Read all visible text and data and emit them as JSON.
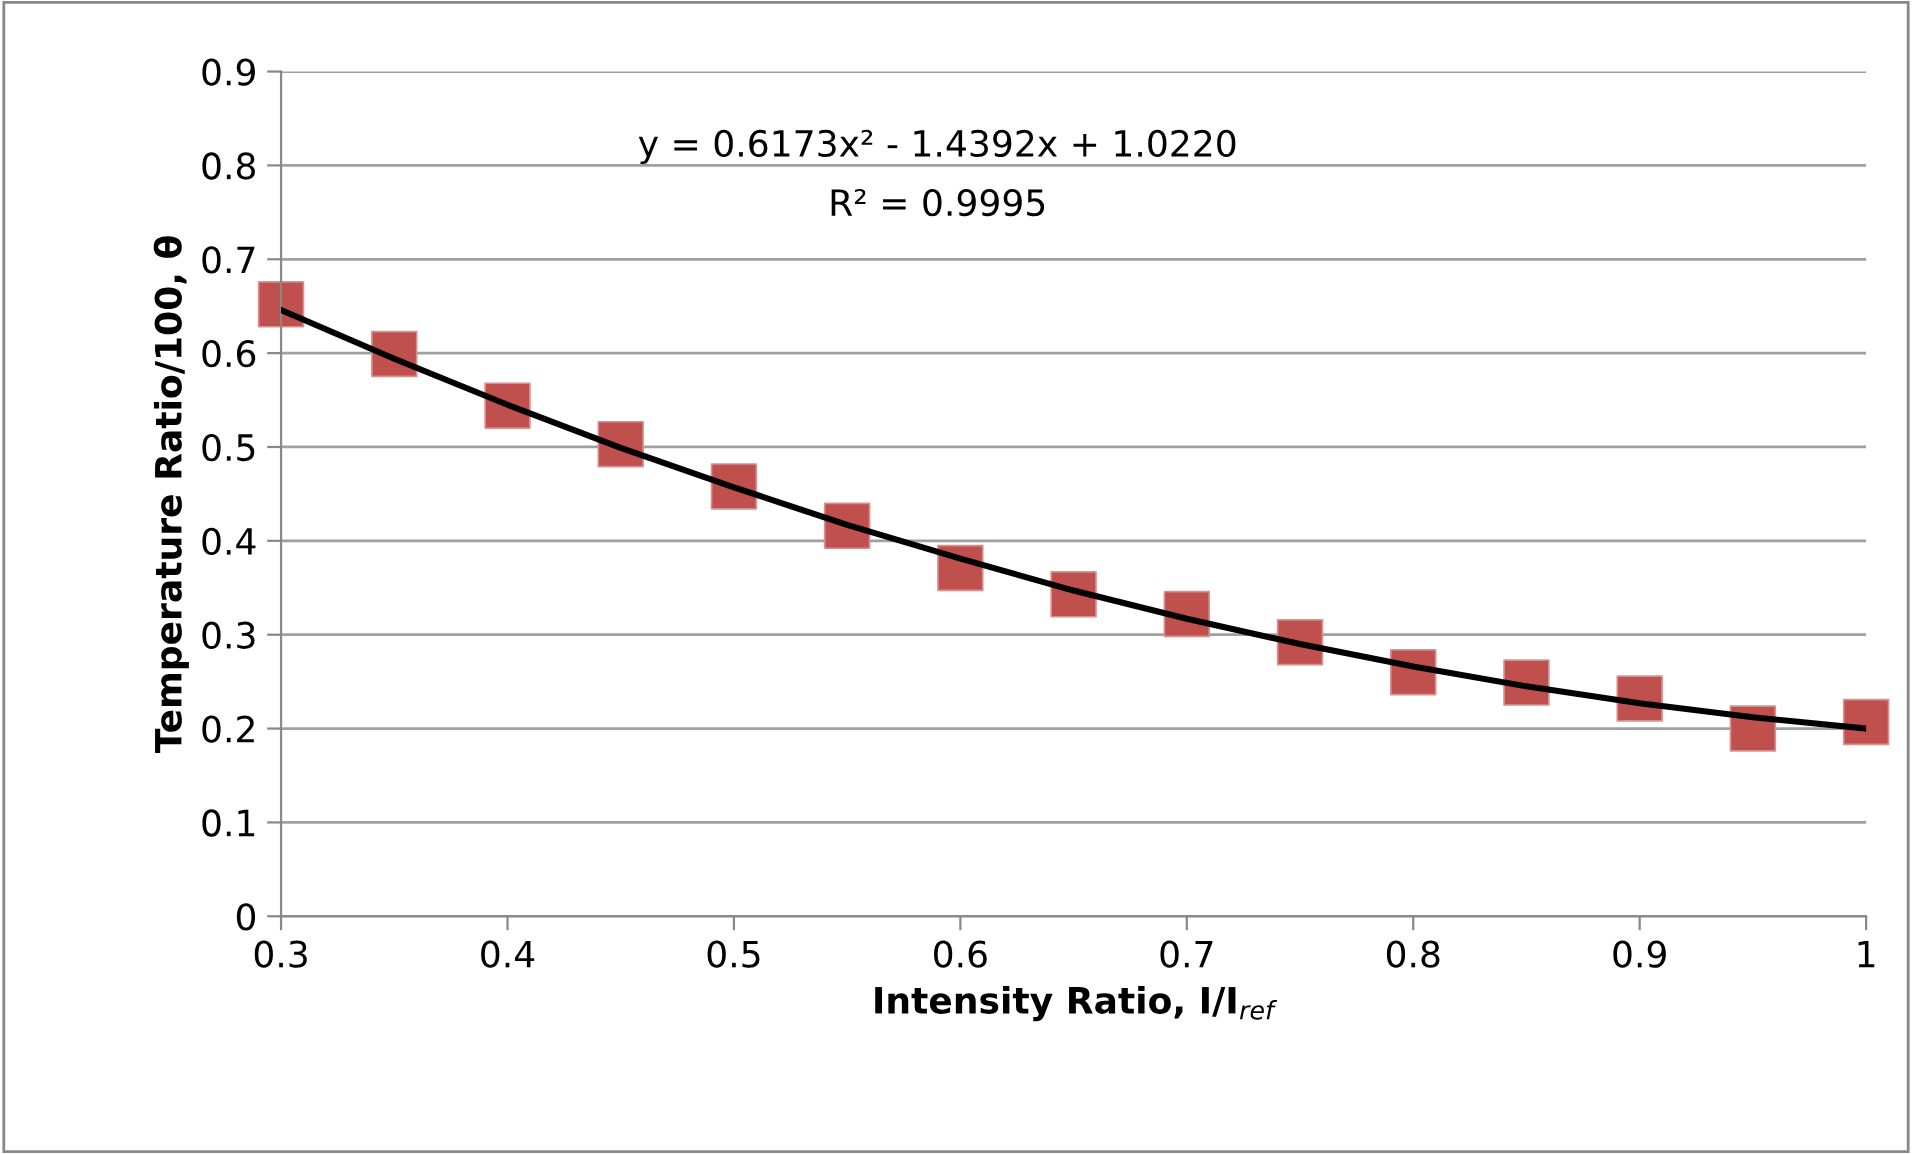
{
  "chart_data": {
    "type": "scatter",
    "ylabel": "Temperature Ratio/100, θ",
    "xlabel": "Intensity Ratio, I/I$_{ref}$",
    "annotations": [
      "y = 0.6173x² - 1.4392x + 1.0220",
      "R² = 0.9995"
    ],
    "xlim": [
      0.3,
      1
    ],
    "xticks": [
      0.3,
      0.4,
      0.5,
      0.6,
      0.7,
      0.8,
      0.9,
      1
    ],
    "ylim": [
      0,
      0.9
    ],
    "yticks": [
      0,
      0.1,
      0.2,
      0.3,
      0.4,
      0.5,
      0.6,
      0.7,
      0.8,
      0.9
    ],
    "grid": "y",
    "legend": false,
    "series": [
      {
        "color": "#c0504d",
        "marker": "square",
        "x": [
          0.3,
          0.35,
          0.4,
          0.45,
          0.5,
          0.55,
          0.6,
          0.65,
          0.7,
          0.75,
          0.8,
          0.85,
          0.9,
          0.95,
          1
        ],
        "values": [
          0.652,
          0.599,
          0.544,
          0.503,
          0.458,
          0.416,
          0.371,
          0.343,
          0.322,
          0.292,
          0.26,
          0.249,
          0.232,
          0.2,
          0.207
        ]
      },
      {
        "type": "line",
        "color": "#000000",
        "marker": "none",
        "line_style": "solid",
        "x": [
          0.3,
          0.35,
          0.4,
          0.45,
          0.5,
          0.55,
          0.6,
          0.65,
          0.7,
          0.75,
          0.8,
          0.85,
          0.9,
          0.95,
          1
        ],
        "values": [
          0.646,
          0.594,
          0.545,
          0.499,
          0.457,
          0.417,
          0.381,
          0.347,
          0.317,
          0.29,
          0.266,
          0.245,
          0.227,
          0.212,
          0.2
        ]
      }
    ]
  }
}
